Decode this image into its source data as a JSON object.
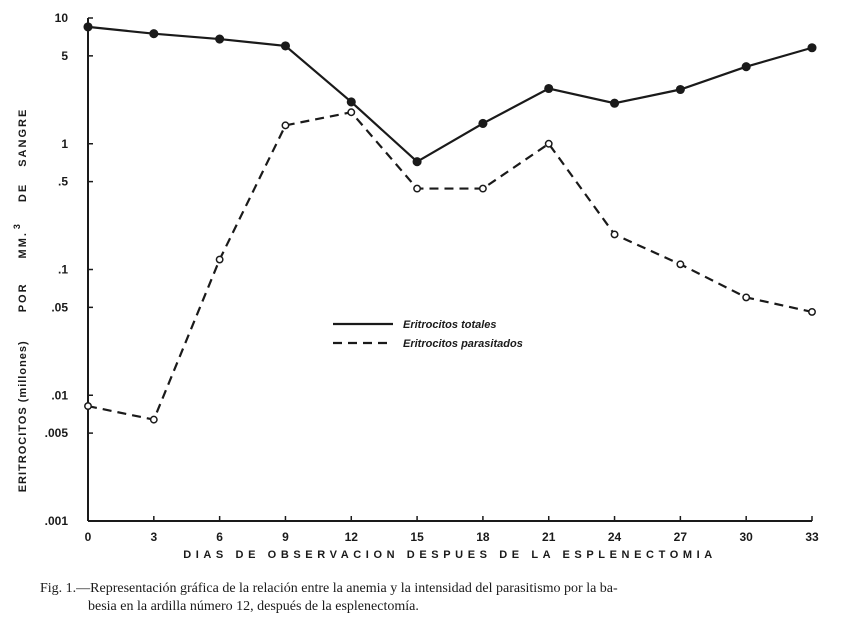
{
  "chart_data": {
    "type": "line",
    "xlabel": "DIAS DE OBSERVACION DESPUES DE LA ESPLENECTOMIA",
    "ylabel_parts": [
      "ERITROCITOS (millones)",
      "POR",
      "MM.",
      "3",
      "DE",
      "SANGRE"
    ],
    "y_scale": "log",
    "ylim": [
      0.001,
      10
    ],
    "y_ticks": [
      {
        "value": 10,
        "label": "10"
      },
      {
        "value": 5,
        "label": "5"
      },
      {
        "value": 1,
        "label": "1"
      },
      {
        "value": 0.5,
        "label": ".5"
      },
      {
        "value": 0.1,
        "label": ".1"
      },
      {
        "value": 0.05,
        "label": ".05"
      },
      {
        "value": 0.01,
        "label": ".01"
      },
      {
        "value": 0.005,
        "label": ".005"
      },
      {
        "value": 0.001,
        "label": ".001"
      }
    ],
    "x": [
      0,
      3,
      6,
      9,
      12,
      15,
      18,
      21,
      24,
      27,
      30,
      33
    ],
    "x_tick_labels": [
      "0",
      "3",
      "6",
      "9",
      "12",
      "15",
      "18",
      "21",
      "24",
      "27",
      "30",
      "33"
    ],
    "xlim": [
      0,
      33
    ],
    "grid": false,
    "legend_position": "center",
    "series": [
      {
        "name": "Eritrocitos totales",
        "style": "solid",
        "marker": "filled-circle",
        "color": "#1a1a1a",
        "values": [
          8.5,
          7.5,
          6.8,
          6.0,
          2.15,
          0.72,
          1.45,
          2.75,
          2.1,
          2.7,
          4.1,
          5.8
        ]
      },
      {
        "name": "Eritrocitos parasitados",
        "style": "dashed",
        "marker": "open-circle",
        "color": "#1a1a1a",
        "values": [
          0.0082,
          0.0064,
          0.12,
          1.4,
          1.78,
          0.44,
          0.44,
          1.0,
          0.19,
          0.11,
          0.06,
          0.046
        ]
      }
    ]
  },
  "caption": {
    "line1": "Fig. 1.—Representación gráfica de la relación entre la anemia y la intensidad del parasitismo por la ba-",
    "line2": "besia en la ardilla número 12, después de la esplenectomía."
  }
}
